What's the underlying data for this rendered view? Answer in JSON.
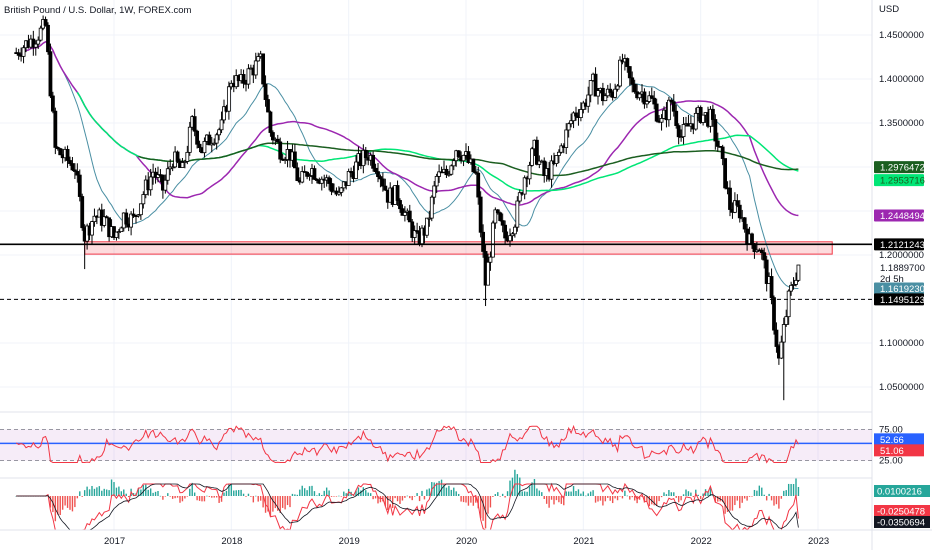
{
  "header": {
    "title": "British Pound / U.S. Dollar, 1W, FOREX.com"
  },
  "price_axis": {
    "currency": "USD",
    "ticks": [
      "1.4500000",
      "1.4000000",
      "1.3500000",
      "1.2000000",
      "1.1000000",
      "1.0500000"
    ]
  },
  "time_axis": {
    "ticks": [
      "2017",
      "2018",
      "2019",
      "2020",
      "2021",
      "2022",
      "2023"
    ]
  },
  "price_labels": [
    {
      "text": "1.2976472",
      "color": "#1b5e20",
      "value": 1.2976472
    },
    {
      "text": "1.2953716",
      "color": "#00c853",
      "value": 1.2953716
    },
    {
      "text": "1.2448494",
      "color": "#9c27b0",
      "value": 1.2448494
    },
    {
      "text": "1.2121243",
      "color": "#000000",
      "value": 1.2121243
    },
    {
      "text": "1.1889700",
      "color": "#ffffff",
      "value": 1.18897
    },
    {
      "text": "2d 5h",
      "color": "#ffffff"
    },
    {
      "text": "1.1619230",
      "color": "#4a8fa3",
      "value": 1.161923
    },
    {
      "text": "1.1495123",
      "color": "#000000",
      "value": 1.1495123
    }
  ],
  "rsi_panel": {
    "ticks": [
      "75.00",
      "25.00"
    ],
    "labels": [
      {
        "text": "52.66",
        "color": "#2962ff",
        "value": 52.66
      },
      {
        "text": "51.06",
        "color": "#f23645",
        "value": 51.06
      }
    ]
  },
  "macd_panel": {
    "labels": [
      {
        "text": "0.0100216",
        "color": "#26a69a",
        "value": 0.0100216
      },
      {
        "text": "-0.0250478",
        "color": "#f23645",
        "value": -0.0250478
      },
      {
        "text": "-0.0350694",
        "color": "#131722",
        "value": -0.0350694
      }
    ]
  },
  "chart_data": {
    "type": "candlestick",
    "symbol": "GBPUSD",
    "timeframe": "1W",
    "ylim": [
      1.03,
      1.49
    ],
    "x_range": [
      "2016-03",
      "2023-01"
    ],
    "horizontal_levels": [
      {
        "value": 1.2121243,
        "style": "solid",
        "color": "#000000"
      },
      {
        "value": 1.1495123,
        "style": "dashed",
        "color": "#000000"
      }
    ],
    "support_zone": {
      "from": 1.201,
      "to": 1.215,
      "x_from": "2016-10",
      "x_to": "2022-12",
      "color": "#f23645"
    },
    "close_path": [
      [
        "2016-03",
        1.43
      ],
      [
        "2016-04",
        1.44
      ],
      [
        "2016-05",
        1.448
      ],
      [
        "2016-06",
        1.46
      ],
      [
        "2016-07",
        1.32
      ],
      [
        "2016-08",
        1.31
      ],
      [
        "2016-09",
        1.3
      ],
      [
        "2016-10",
        1.222
      ],
      [
        "2016-11",
        1.245
      ],
      [
        "2016-12",
        1.24
      ],
      [
        "2017-01",
        1.22
      ],
      [
        "2017-02",
        1.245
      ],
      [
        "2017-03",
        1.24
      ],
      [
        "2017-04",
        1.27
      ],
      [
        "2017-05",
        1.295
      ],
      [
        "2017-06",
        1.275
      ],
      [
        "2017-07",
        1.31
      ],
      [
        "2017-08",
        1.295
      ],
      [
        "2017-09",
        1.35
      ],
      [
        "2017-10",
        1.32
      ],
      [
        "2017-11",
        1.335
      ],
      [
        "2017-12",
        1.345
      ],
      [
        "2018-01",
        1.4
      ],
      [
        "2018-02",
        1.395
      ],
      [
        "2018-03",
        1.41
      ],
      [
        "2018-04",
        1.42
      ],
      [
        "2018-05",
        1.34
      ],
      [
        "2018-06",
        1.32
      ],
      [
        "2018-07",
        1.315
      ],
      [
        "2018-08",
        1.28
      ],
      [
        "2018-09",
        1.3
      ],
      [
        "2018-10",
        1.29
      ],
      [
        "2018-11",
        1.282
      ],
      [
        "2018-12",
        1.265
      ],
      [
        "2019-01",
        1.29
      ],
      [
        "2019-02",
        1.305
      ],
      [
        "2019-03",
        1.315
      ],
      [
        "2019-04",
        1.3
      ],
      [
        "2019-05",
        1.268
      ],
      [
        "2019-06",
        1.268
      ],
      [
        "2019-07",
        1.24
      ],
      [
        "2019-08",
        1.216
      ],
      [
        "2019-09",
        1.232
      ],
      [
        "2019-10",
        1.288
      ],
      [
        "2019-11",
        1.292
      ],
      [
        "2019-12",
        1.322
      ],
      [
        "2020-01",
        1.31
      ],
      [
        "2020-02",
        1.29
      ],
      [
        "2020-03",
        1.168
      ],
      [
        "2020-04",
        1.245
      ],
      [
        "2020-05",
        1.22
      ],
      [
        "2020-06",
        1.24
      ],
      [
        "2020-07",
        1.29
      ],
      [
        "2020-08",
        1.32
      ],
      [
        "2020-09",
        1.29
      ],
      [
        "2020-10",
        1.3
      ],
      [
        "2020-11",
        1.33
      ],
      [
        "2020-12",
        1.36
      ],
      [
        "2021-01",
        1.37
      ],
      [
        "2021-02",
        1.395
      ],
      [
        "2021-03",
        1.38
      ],
      [
        "2021-04",
        1.385
      ],
      [
        "2021-05",
        1.42
      ],
      [
        "2021-06",
        1.39
      ],
      [
        "2021-07",
        1.385
      ],
      [
        "2021-08",
        1.375
      ],
      [
        "2021-09",
        1.35
      ],
      [
        "2021-10",
        1.375
      ],
      [
        "2021-11",
        1.335
      ],
      [
        "2021-12",
        1.35
      ],
      [
        "2022-01",
        1.36
      ],
      [
        "2022-02",
        1.355
      ],
      [
        "2022-03",
        1.315
      ],
      [
        "2022-04",
        1.255
      ],
      [
        "2022-05",
        1.25
      ],
      [
        "2022-06",
        1.215
      ],
      [
        "2022-07",
        1.21
      ],
      [
        "2022-08",
        1.165
      ],
      [
        "2022-09",
        1.08
      ],
      [
        "2022-10",
        1.15
      ],
      [
        "2022-11",
        1.189
      ]
    ],
    "moving_averages": [
      {
        "name": "",
        "color": "#1b5e20",
        "last": 1.2976472
      },
      {
        "name": "",
        "color": "#00e676",
        "last": 1.2953716
      },
      {
        "name": "",
        "color": "#9c27b0",
        "last": 1.2448494
      },
      {
        "name": "",
        "color": "#4a8fa3",
        "last": 1.161923
      }
    ],
    "indicators": [
      {
        "panel": "RSI",
        "band": [
          25,
          75
        ],
        "last": 51.06,
        "signal_last": 52.66
      },
      {
        "panel": "MACD",
        "histogram_last": 0.0100216,
        "macd_last": -0.0250478,
        "signal_last": -0.0350694
      }
    ]
  }
}
